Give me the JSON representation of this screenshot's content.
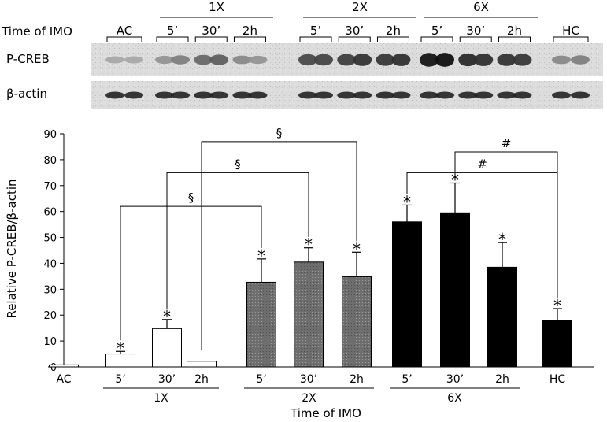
{
  "blot": {
    "row_label": "Time of IMO",
    "proteins": [
      "P-CREB",
      "β-actin"
    ],
    "groups": [
      {
        "label": "AC"
      },
      {
        "label": "1X",
        "sub": [
          "5’",
          "30’",
          "2h"
        ]
      },
      {
        "label": "2X",
        "sub": [
          "5’",
          "30’",
          "2h"
        ]
      },
      {
        "label": "6X",
        "sub": [
          "5’",
          "30’",
          "2h"
        ]
      },
      {
        "label": "HC"
      }
    ],
    "pcreb_intensity": [
      0.25,
      0.25,
      0.35,
      0.45,
      0.55,
      0.6,
      0.4,
      0.35,
      0.7,
      0.72,
      0.75,
      0.8,
      0.78,
      0.82,
      0.95,
      0.97,
      0.85,
      0.82,
      0.8,
      0.78,
      0.4,
      0.45
    ]
  },
  "chart_data": {
    "type": "bar",
    "title": "",
    "xlabel": "Time of IMO",
    "ylabel": "Relative P-CREB/β-actin",
    "ylim": [
      0,
      90
    ],
    "yticks": [
      0,
      10,
      20,
      30,
      40,
      50,
      60,
      70,
      80,
      90
    ],
    "categories": [
      "AC",
      "5’",
      "30’",
      "2h",
      "5’",
      "30’",
      "2h",
      "5’",
      "30’",
      "2h",
      "HC"
    ],
    "values": [
      0.8,
      5,
      14.8,
      2.2,
      32.7,
      40.5,
      34.8,
      56,
      59.5,
      38.5,
      18
    ],
    "errors": [
      0,
      1,
      3.5,
      0,
      9,
      5.5,
      9.5,
      6.5,
      11.5,
      9.5,
      4.5
    ],
    "fills": [
      "white",
      "white",
      "white",
      "white",
      "gray",
      "gray",
      "gray",
      "black",
      "black",
      "black",
      "black"
    ],
    "significant": [
      false,
      true,
      true,
      false,
      true,
      true,
      true,
      true,
      true,
      true,
      true
    ],
    "star_symbol": "*",
    "groups": [
      {
        "label": "1X",
        "from": 1,
        "to": 3
      },
      {
        "label": "2X",
        "from": 4,
        "to": 6
      },
      {
        "label": "6X",
        "from": 7,
        "to": 9
      }
    ],
    "comparisons": [
      {
        "symbol": "§",
        "from": 1,
        "to": 4,
        "level": 62
      },
      {
        "symbol": "§",
        "from": 2,
        "to": 5,
        "level": 75
      },
      {
        "symbol": "§",
        "from": 3,
        "to": 6,
        "level": 87
      },
      {
        "symbol": "#",
        "from": 7,
        "to": 10,
        "level": 75
      },
      {
        "symbol": "#",
        "from": 8,
        "to": 10,
        "level": 83
      }
    ],
    "colors": {
      "white": "#ffffff",
      "gray": "#6e6e6e",
      "black": "#000000"
    }
  }
}
